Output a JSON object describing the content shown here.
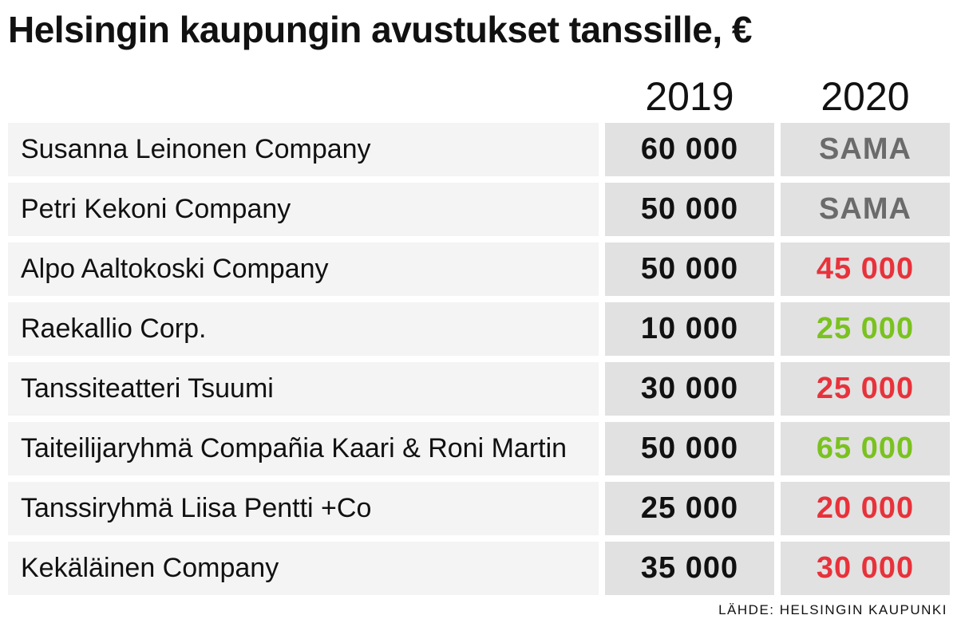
{
  "title": "Helsingin kaupungin avustukset tanssille, €",
  "source": "LÄHDE: HELSINGIN KAUPUNKI",
  "colors": {
    "same": "#6b6b6b",
    "decrease": "#e8323b",
    "increase": "#7ac21f",
    "text": "#111111"
  },
  "chart_data": {
    "type": "table",
    "title": "Helsingin kaupungin avustukset tanssille, €",
    "columns": [
      "",
      "2019",
      "2020"
    ],
    "rows": [
      {
        "name": "Susanna Leinonen Company",
        "v2019": "60 000",
        "v2020": "SAMA",
        "change": "same"
      },
      {
        "name": "Petri Kekoni Company",
        "v2019": "50 000",
        "v2020": "SAMA",
        "change": "same"
      },
      {
        "name": "Alpo Aaltokoski Company",
        "v2019": "50 000",
        "v2020": "45 000",
        "change": "decrease"
      },
      {
        "name": "Raekallio Corp.",
        "v2019": "10 000",
        "v2020": "25 000",
        "change": "increase"
      },
      {
        "name": "Tanssiteatteri Tsuumi",
        "v2019": "30 000",
        "v2020": "25 000",
        "change": "decrease"
      },
      {
        "name": "Taiteilijaryhmä Compañia Kaari & Roni Martin",
        "v2019": "50 000",
        "v2020": "65 000",
        "change": "increase"
      },
      {
        "name": "Tanssiryhmä Liisa Pentti +Co",
        "v2019": "25 000",
        "v2020": "20 000",
        "change": "decrease"
      },
      {
        "name": "Kekäläinen Company",
        "v2019": "35 000",
        "v2020": "30 000",
        "change": "decrease"
      }
    ]
  }
}
